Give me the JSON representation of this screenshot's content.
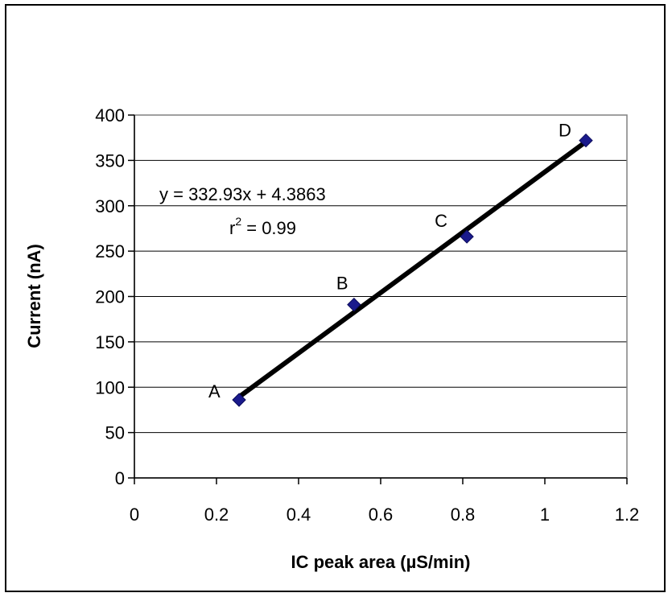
{
  "chart_data": {
    "type": "scatter",
    "xlabel": "IC peak area (µS/min)",
    "ylabel": "Current (nA)",
    "xlim": [
      0,
      1.2
    ],
    "ylim": [
      0,
      400
    ],
    "x_ticks": [
      "0",
      "0.2",
      "0.4",
      "0.6",
      "0.8",
      "1",
      "1.2"
    ],
    "y_ticks": [
      "0",
      "50",
      "100",
      "150",
      "200",
      "250",
      "300",
      "350",
      "400"
    ],
    "grid": "horizontal",
    "series": [
      {
        "marker": "diamond",
        "color": "#1a1a8c",
        "points": [
          {
            "label": "A",
            "x": 0.255,
            "y": 86
          },
          {
            "label": "B",
            "x": 0.535,
            "y": 191
          },
          {
            "label": "C",
            "x": 0.81,
            "y": 266
          },
          {
            "label": "D",
            "x": 1.1,
            "y": 372
          }
        ]
      }
    ],
    "trendline": {
      "slope": 332.93,
      "intercept": 4.3863,
      "x_start": 0.255,
      "x_end": 1.1,
      "color": "#000000"
    },
    "annotations": {
      "equation": "y = 332.93x + 4.3863",
      "r_squared_prefix": "r",
      "r_squared_sup": "2",
      "r_squared_value": " = 0.99"
    }
  }
}
